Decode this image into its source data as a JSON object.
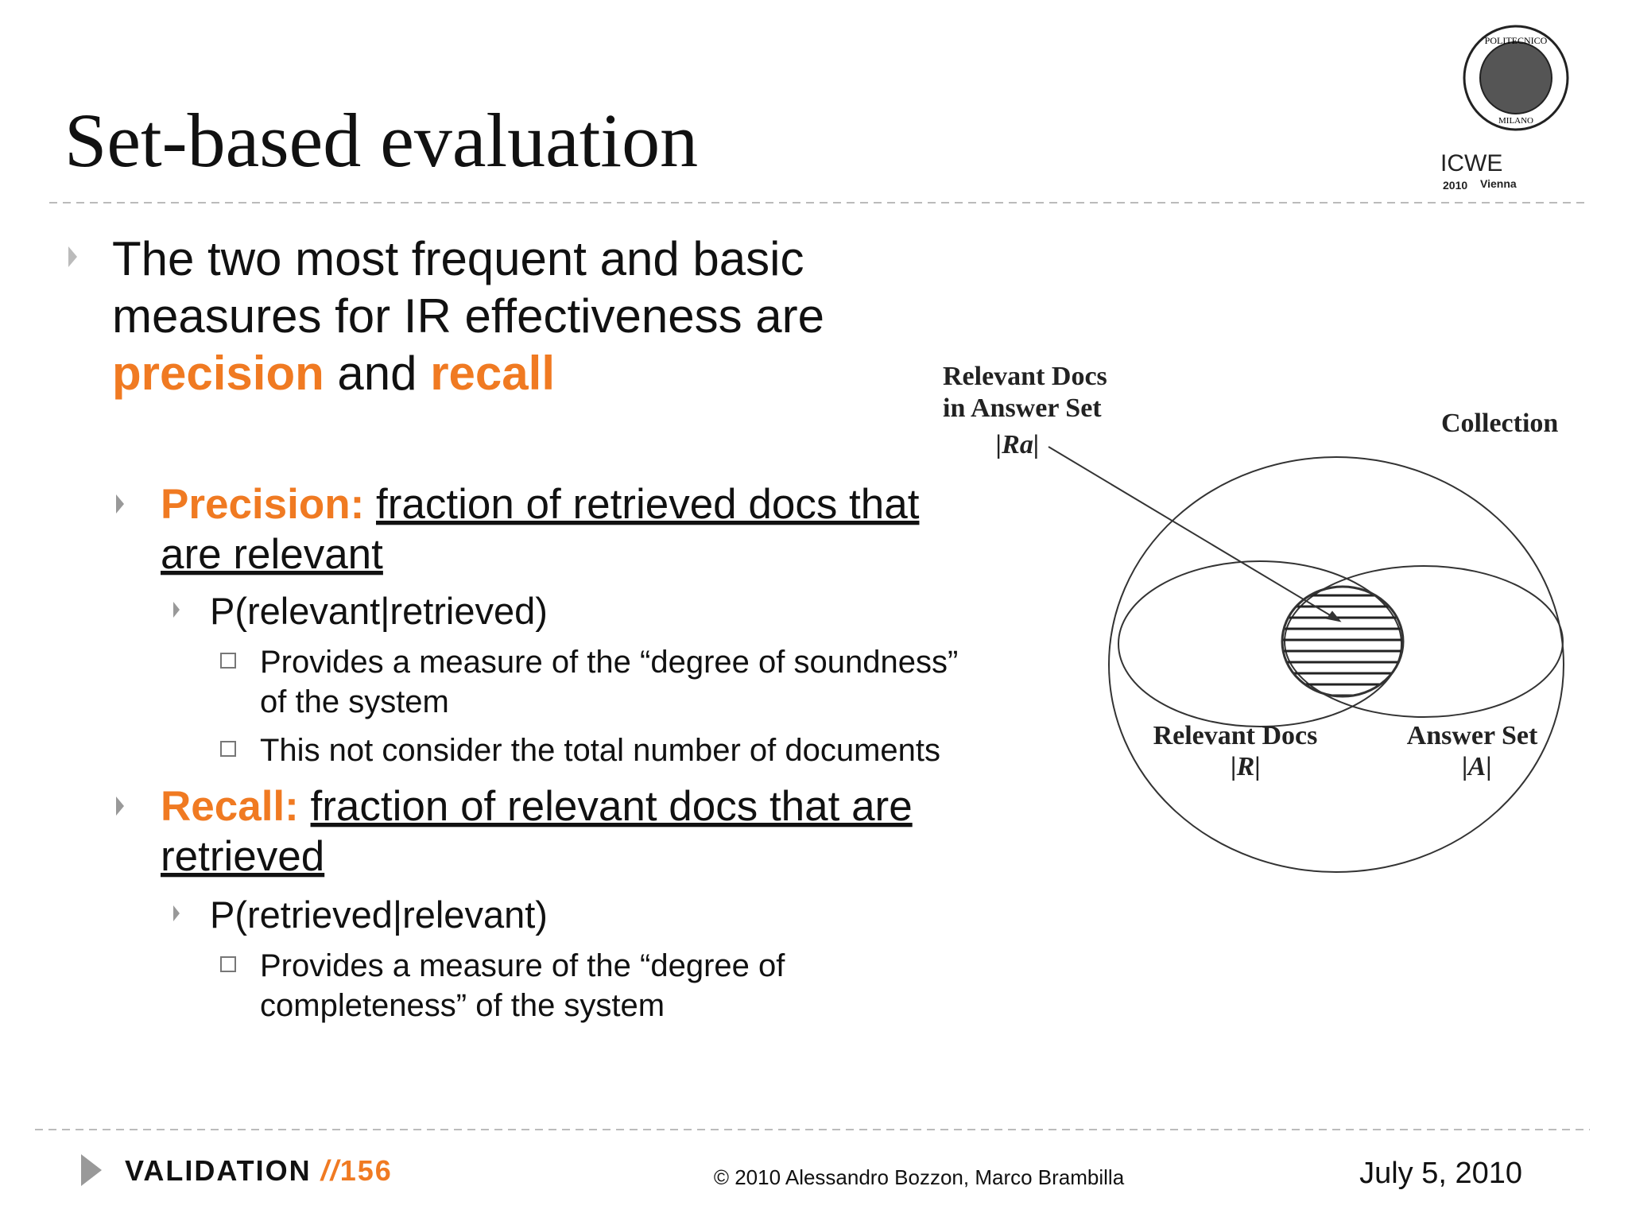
{
  "header": {
    "title": "Set-based evaluation",
    "logo": {
      "university": "POLITECNICO",
      "city": "MILANO",
      "conference": "ICWE",
      "year": "2010",
      "venue": "Vienna"
    }
  },
  "intro": {
    "lines": [
      "The two most frequent and basic",
      "measures for IR effectiveness are"
    ],
    "term1": "precision",
    "conjunction": "and",
    "term2": "recall"
  },
  "precision": {
    "label": "Precision:",
    "definition_lines": [
      "fraction of retrieved docs that",
      "are relevant"
    ],
    "formula": "P(relevant|retrieved)",
    "notes": [
      {
        "lines": [
          "Provides a measure of the “degree of soundness”",
          "of the system"
        ]
      },
      {
        "lines": [
          "This not consider the total number of documents"
        ]
      }
    ]
  },
  "recall": {
    "label": "Recall:",
    "definition_lines": [
      "fraction of relevant docs that are",
      "retrieved"
    ],
    "formula": "P(retrieved|relevant)",
    "notes": [
      {
        "lines": [
          "Provides a measure of the “degree of",
          "completeness” of the system"
        ]
      }
    ]
  },
  "diagram": {
    "ra_label": [
      "Relevant Docs",
      "in Answer Set",
      "|Ra|"
    ],
    "collection": "Collection",
    "relevant": [
      "Relevant Docs",
      "|R|"
    ],
    "answer": [
      "Answer Set",
      "|A|"
    ]
  },
  "footer": {
    "section": "VALIDATION",
    "separator": "//",
    "page": "156",
    "copyright": "© 2010 Alessandro Bozzon, Marco Brambilla",
    "date": "July 5, 2010"
  }
}
